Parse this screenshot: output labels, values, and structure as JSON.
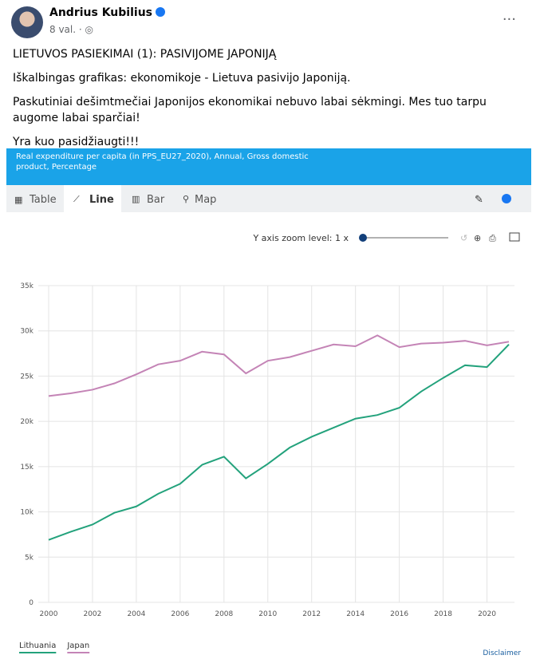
{
  "post": {
    "author": "Andrius Kubilius",
    "time": "8 val. ·",
    "paragraphs": [
      "LIETUVOS PASIEKIMAI (1): PASIVIJOME JAPONIJĄ",
      "Iškalbingas grafikas: ekonomikoje - Lietuva pasivijo Japoniją.",
      "Paskutiniai dešimtmečiai Japonijos ekonomikai nebuvo labai sėkmingi. Mes tuo tarpu augome labai sparčiai!",
      "Yra kuo pasidžiaugti!!!"
    ]
  },
  "widget": {
    "tabs": [
      "Table",
      "Line",
      "Bar",
      "Map"
    ],
    "zoom_label": "Y axis zoom level: 1 x",
    "disclaimer": "Disclaimer"
  },
  "chart_data": {
    "type": "line",
    "title": "Real expenditure per capita (in PPS_EU27_2020), Annual, Gross domestic product, Percentage",
    "x": [
      2000,
      2001,
      2002,
      2003,
      2004,
      2005,
      2006,
      2007,
      2008,
      2009,
      2010,
      2011,
      2012,
      2013,
      2014,
      2015,
      2016,
      2017,
      2018,
      2019,
      2020,
      2021
    ],
    "series": [
      {
        "name": "Lithuania",
        "color": "#23a27c",
        "values": [
          6900,
          7800,
          8600,
          9900,
          10600,
          12000,
          13100,
          15200,
          16100,
          13700,
          15300,
          17100,
          18300,
          19300,
          20300,
          20700,
          21500,
          23300,
          24800,
          26200,
          26000,
          28500
        ]
      },
      {
        "name": "Japan",
        "color": "#c484b6",
        "values": [
          22800,
          23100,
          23500,
          24200,
          25200,
          26300,
          26700,
          27700,
          27400,
          25300,
          26700,
          27100,
          27800,
          28500,
          28300,
          29500,
          28200,
          28600,
          28700,
          28900,
          28400,
          28800
        ]
      }
    ],
    "xlim": [
      2000,
      2021
    ],
    "xticks": [
      2000,
      2002,
      2004,
      2006,
      2008,
      2010,
      2012,
      2014,
      2016,
      2018,
      2020
    ],
    "ylim": [
      0,
      35000
    ],
    "yticks": [
      0,
      {
        "value": 5000,
        "label": "5k"
      },
      {
        "value": 10000,
        "label": "10k"
      },
      {
        "value": 15000,
        "label": "15k"
      },
      {
        "value": 20000,
        "label": "20k"
      },
      {
        "value": 25000,
        "label": "25k"
      },
      {
        "value": 30000,
        "label": "30k"
      },
      {
        "value": 35000,
        "label": "35k"
      }
    ],
    "grid": true
  }
}
